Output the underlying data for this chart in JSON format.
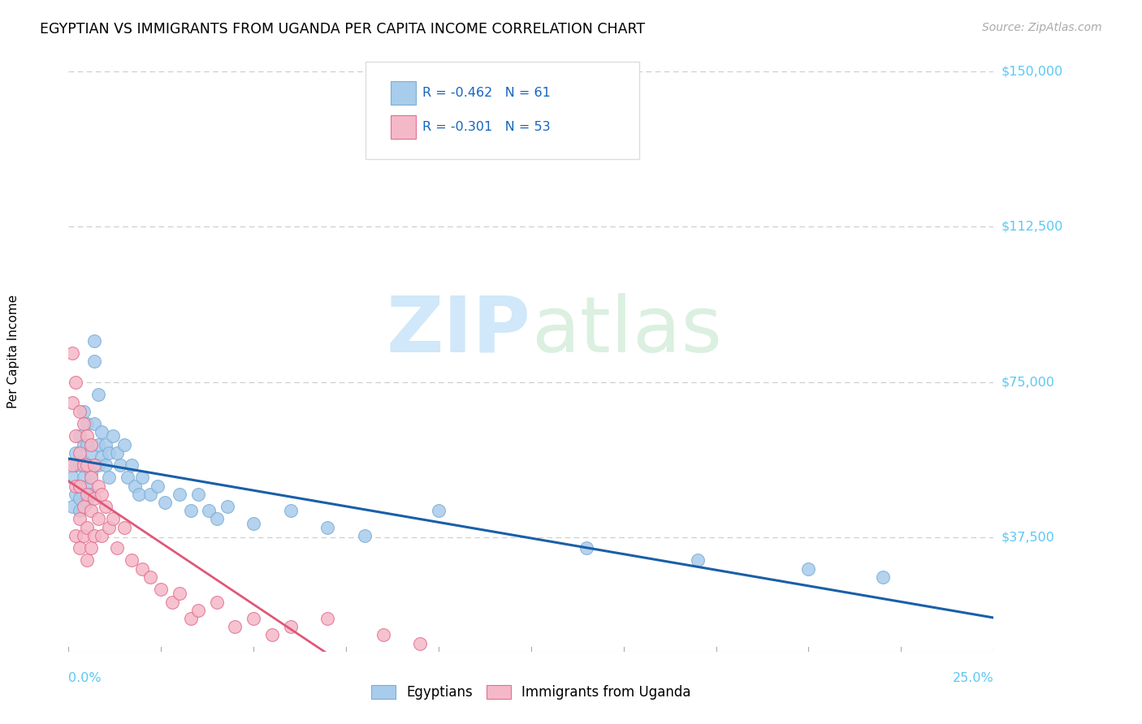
{
  "title": "EGYPTIAN VS IMMIGRANTS FROM UGANDA PER CAPITA INCOME CORRELATION CHART",
  "source": "Source: ZipAtlas.com",
  "ylabel": "Per Capita Income",
  "yticks": [
    0,
    37500,
    75000,
    112500,
    150000
  ],
  "ytick_labels": [
    "",
    "$37,500",
    "$75,000",
    "$112,500",
    "$150,000"
  ],
  "xmin": 0.0,
  "xmax": 0.25,
  "ymin": 10000,
  "ymax": 155000,
  "blue_color": "#A8CCEC",
  "blue_edge": "#7AADD4",
  "pink_color": "#F5B8C8",
  "pink_edge": "#E07090",
  "blue_line_color": "#1A5FA8",
  "pink_line_color": "#E05878",
  "legend_text_color": "#1565C0",
  "legend_R1": "R = -0.462",
  "legend_N1": "N = 61",
  "legend_R2": "R = -0.301",
  "legend_N2": "N = 53",
  "egyptians_x": [
    0.001,
    0.001,
    0.002,
    0.002,
    0.002,
    0.003,
    0.003,
    0.003,
    0.003,
    0.003,
    0.004,
    0.004,
    0.004,
    0.004,
    0.005,
    0.005,
    0.005,
    0.005,
    0.005,
    0.006,
    0.006,
    0.006,
    0.007,
    0.007,
    0.007,
    0.008,
    0.008,
    0.008,
    0.009,
    0.009,
    0.01,
    0.01,
    0.011,
    0.011,
    0.012,
    0.013,
    0.014,
    0.015,
    0.016,
    0.017,
    0.018,
    0.019,
    0.02,
    0.022,
    0.024,
    0.026,
    0.03,
    0.033,
    0.035,
    0.038,
    0.04,
    0.043,
    0.05,
    0.06,
    0.07,
    0.08,
    0.1,
    0.14,
    0.17,
    0.2,
    0.22
  ],
  "egyptians_y": [
    52000,
    45000,
    58000,
    48000,
    55000,
    62000,
    55000,
    50000,
    47000,
    44000,
    68000,
    60000,
    56000,
    52000,
    65000,
    60000,
    55000,
    50000,
    46000,
    58000,
    53000,
    48000,
    85000,
    80000,
    65000,
    72000,
    60000,
    55000,
    63000,
    57000,
    60000,
    55000,
    58000,
    52000,
    62000,
    58000,
    55000,
    60000,
    52000,
    55000,
    50000,
    48000,
    52000,
    48000,
    50000,
    46000,
    48000,
    44000,
    48000,
    44000,
    42000,
    45000,
    41000,
    44000,
    40000,
    38000,
    44000,
    35000,
    32000,
    30000,
    28000
  ],
  "uganda_x": [
    0.001,
    0.001,
    0.001,
    0.002,
    0.002,
    0.002,
    0.002,
    0.003,
    0.003,
    0.003,
    0.003,
    0.003,
    0.004,
    0.004,
    0.004,
    0.004,
    0.005,
    0.005,
    0.005,
    0.005,
    0.005,
    0.006,
    0.006,
    0.006,
    0.006,
    0.007,
    0.007,
    0.007,
    0.008,
    0.008,
    0.009,
    0.009,
    0.01,
    0.011,
    0.012,
    0.013,
    0.015,
    0.017,
    0.02,
    0.022,
    0.025,
    0.028,
    0.03,
    0.033,
    0.035,
    0.04,
    0.045,
    0.05,
    0.055,
    0.06,
    0.07,
    0.085,
    0.095
  ],
  "uganda_y": [
    82000,
    70000,
    55000,
    75000,
    62000,
    50000,
    38000,
    68000,
    58000,
    50000,
    42000,
    35000,
    65000,
    55000,
    45000,
    38000,
    62000,
    55000,
    48000,
    40000,
    32000,
    60000,
    52000,
    44000,
    35000,
    55000,
    47000,
    38000,
    50000,
    42000,
    48000,
    38000,
    45000,
    40000,
    42000,
    35000,
    40000,
    32000,
    30000,
    28000,
    25000,
    22000,
    24000,
    18000,
    20000,
    22000,
    16000,
    18000,
    14000,
    16000,
    18000,
    14000,
    12000
  ]
}
